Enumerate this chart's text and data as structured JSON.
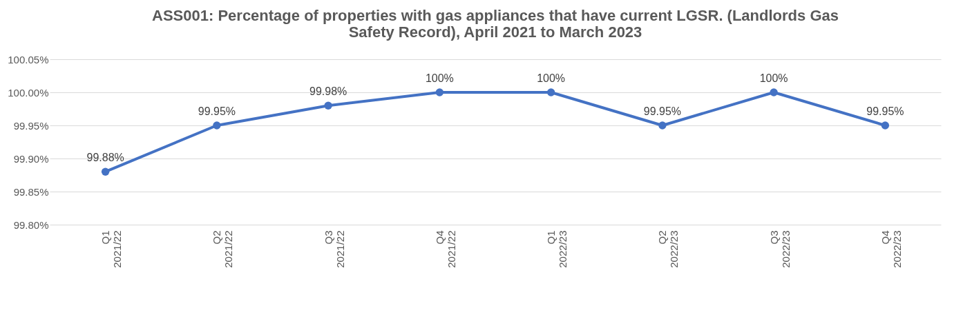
{
  "chart_data": {
    "type": "line",
    "title": "ASS001: Percentage of properties with gas appliances that have current LGSR. (Landlords Gas Safety Record), April 2021 to March 2023",
    "categories": [
      "Q1 2021/22",
      "Q2 2021/22",
      "Q3 2021/22",
      "Q4 2021/22",
      "Q1 2022/23",
      "Q2 2022/23",
      "Q3 2022/23",
      "Q4 2022/23"
    ],
    "series": [
      {
        "color": "#4472c4",
        "values": [
          99.88,
          99.95,
          99.98,
          100,
          100,
          99.95,
          100,
          99.95
        ],
        "value_labels": [
          "99.88%",
          "99.95%",
          "99.98%",
          "100%",
          "100%",
          "99.95%",
          "100%",
          "99.95%"
        ]
      }
    ],
    "ylim": [
      99.8,
      100.05
    ],
    "yticks": [
      {
        "value": 99.8,
        "label": "99.80%"
      },
      {
        "value": 99.85,
        "label": "99.85%"
      },
      {
        "value": 99.9,
        "label": "99.90%"
      },
      {
        "value": 99.95,
        "label": "99.95%"
      },
      {
        "value": 100,
        "label": "100.00%"
      },
      {
        "value": 100.05,
        "label": "100.05%"
      }
    ],
    "grid": "y",
    "marker": "circle",
    "line_style": "solid",
    "legend": false
  }
}
